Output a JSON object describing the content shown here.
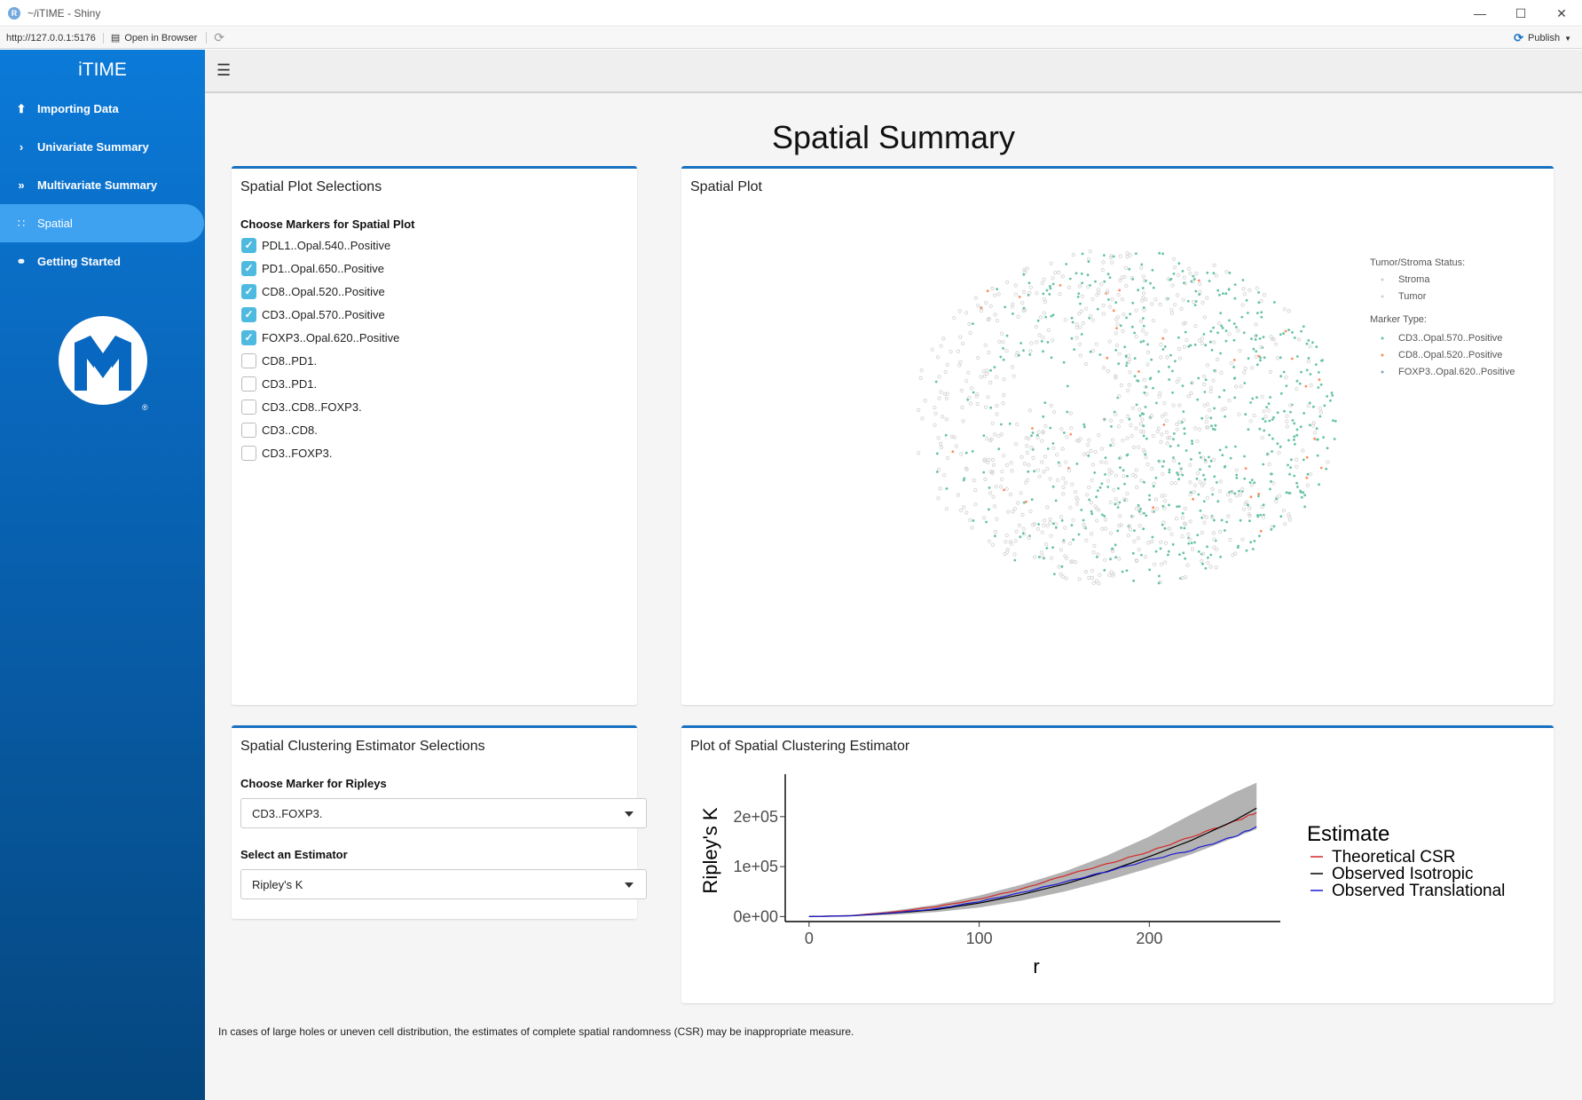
{
  "window": {
    "title": "~/iTIME - Shiny",
    "url": "http://127.0.0.1:5176",
    "open_in_browser": "Open in Browser",
    "publish": "Publish"
  },
  "sidebar": {
    "brand": "iTIME",
    "items": [
      {
        "label": "Importing Data",
        "icon": "upload-icon"
      },
      {
        "label": "Univariate Summary",
        "icon": "chevron-right-icon"
      },
      {
        "label": "Multivariate Summary",
        "icon": "double-chevron-right-icon"
      },
      {
        "label": "Spatial",
        "icon": "grid-dots-icon",
        "active": true
      },
      {
        "label": "Getting Started",
        "icon": "glasses-icon"
      }
    ],
    "logo_mark": "®"
  },
  "main": {
    "title": "Spatial Summary",
    "spatial_selections": {
      "title": "Spatial Plot Selections",
      "label": "Choose Markers for Spatial Plot",
      "markers": [
        {
          "label": "PDL1..Opal.540..Positive",
          "checked": true
        },
        {
          "label": "PD1..Opal.650..Positive",
          "checked": true
        },
        {
          "label": "CD8..Opal.520..Positive",
          "checked": true
        },
        {
          "label": "CD3..Opal.570..Positive",
          "checked": true
        },
        {
          "label": "FOXP3..Opal.620..Positive",
          "checked": true
        },
        {
          "label": "CD8..PD1.",
          "checked": false
        },
        {
          "label": "CD3..PD1.",
          "checked": false
        },
        {
          "label": "CD3..CD8..FOXP3.",
          "checked": false
        },
        {
          "label": "CD3..CD8.",
          "checked": false
        },
        {
          "label": "CD3..FOXP3.",
          "checked": false
        }
      ]
    },
    "spatial_plot": {
      "title": "Spatial Plot",
      "legend_status_title": "Tumor/Stroma Status:",
      "legend_status": [
        "Stroma",
        "Tumor"
      ],
      "legend_marker_title": "Marker Type:",
      "legend_markers": [
        {
          "label": "CD3..Opal.570..Positive",
          "color": "#66c2a5"
        },
        {
          "label": "CD8..Opal.520..Positive",
          "color": "#fc8d62"
        },
        {
          "label": "FOXP3..Opal.620..Positive",
          "color": "#8da0cb"
        }
      ],
      "colors": {
        "stroma": "#cfcfcf",
        "cd3": "#66c2a5",
        "cd8": "#fc8d62"
      }
    },
    "clustering_selections": {
      "title": "Spatial Clustering Estimator Selections",
      "marker_label": "Choose Marker for Ripleys",
      "marker_value": "CD3..FOXP3.",
      "estimator_label": "Select an Estimator",
      "estimator_value": "Ripley's K"
    },
    "clustering_plot": {
      "title": "Plot of Spatial Clustering Estimator"
    },
    "footnote": "In cases of large holes or uneven cell distribution, the estimates of complete spatial randomness (CSR) may be inappropriate measure."
  },
  "chart_data": {
    "type": "line",
    "title": "",
    "xlabel": "r",
    "ylabel": "Ripley's K",
    "xlim": [
      -14,
      277
    ],
    "ylim": [
      -10000,
      285000
    ],
    "x_ticks": [
      {
        "value": 0,
        "label": "0"
      },
      {
        "value": 100,
        "label": "100"
      },
      {
        "value": 200,
        "label": "200"
      }
    ],
    "y_ticks": [
      {
        "value": 0,
        "label": "0e+00"
      },
      {
        "value": 100000,
        "label": "1e+05"
      },
      {
        "value": 200000,
        "label": "2e+05"
      }
    ],
    "legend_title": "Estimate",
    "legend_position": "right",
    "x": [
      0,
      25,
      50,
      75,
      100,
      125,
      150,
      175,
      200,
      225,
      250,
      263
    ],
    "series": [
      {
        "name": "Theoretical CSR",
        "color": "#d62728",
        "values": [
          0,
          2000,
          9000,
          20000,
          35000,
          55000,
          82000,
          105000,
          130000,
          160000,
          190000,
          208000
        ]
      },
      {
        "name": "Observed Isotropic",
        "color": "#000000",
        "values": [
          0,
          1500,
          7000,
          14000,
          27000,
          44000,
          65000,
          90000,
          120000,
          153000,
          192000,
          217000
        ]
      },
      {
        "name": "Observed Translational",
        "color": "#1a1ad6",
        "values": [
          0,
          1700,
          7500,
          15500,
          30000,
          48000,
          69000,
          90000,
          113000,
          133000,
          160000,
          180000
        ]
      }
    ],
    "envelope": {
      "color": "#b3b3b3",
      "lower": [
        0,
        800,
        3500,
        9000,
        18000,
        32000,
        50000,
        72000,
        97000,
        125000,
        158000,
        175000
      ],
      "upper": [
        0,
        2800,
        12000,
        24000,
        42000,
        64000,
        90000,
        122000,
        160000,
        205000,
        248000,
        268000
      ]
    }
  }
}
